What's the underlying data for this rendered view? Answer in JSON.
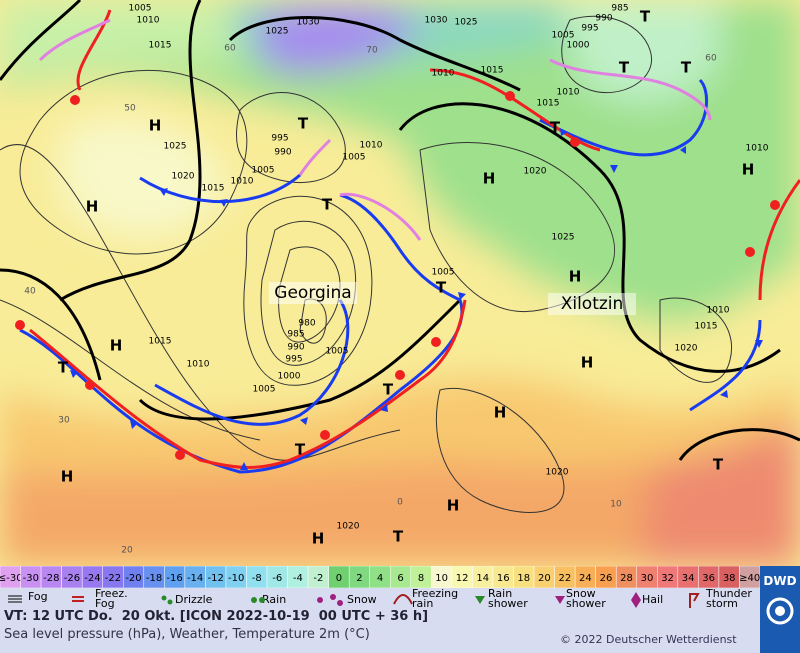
{
  "map": {
    "isobar_labels": [
      "1005",
      "1010",
      "1015",
      "1030",
      "1025",
      "1030",
      "1025",
      "990",
      "985",
      "1000",
      "995",
      "1005",
      "1010",
      "1010",
      "1015",
      "1015",
      "1020",
      "1025",
      "1010",
      "995",
      "990",
      "1005",
      "1010",
      "1015",
      "1020",
      "1025",
      "1010",
      "1005",
      "1005",
      "1005",
      "980",
      "985",
      "990",
      "995",
      "1000",
      "1005",
      "1010",
      "1015",
      "1015",
      "1020",
      "1010",
      "1020",
      "1020"
    ],
    "grid_labels": [
      "60",
      "50",
      "40",
      "30",
      "20",
      "0",
      "10",
      "70",
      "60"
    ],
    "centers": [
      "H",
      "H",
      "H",
      "H",
      "H",
      "H",
      "H",
      "H",
      "H",
      "H",
      "H",
      "T",
      "T",
      "T",
      "T",
      "T",
      "T",
      "T",
      "T",
      "T",
      "T",
      "T",
      "T"
    ],
    "names": [
      "Georgina",
      "Xilotzin"
    ]
  },
  "scale": {
    "labels": [
      "≤-30",
      "-30",
      "-28",
      "-26",
      "-24",
      "-22",
      "-20",
      "-18",
      "-16",
      "-14",
      "-12",
      "-10",
      "-8",
      "-6",
      "-4",
      "-2",
      "0",
      "2",
      "4",
      "6",
      "8",
      "10",
      "12",
      "14",
      "16",
      "18",
      "20",
      "22",
      "24",
      "26",
      "28",
      "30",
      "32",
      "34",
      "36",
      "38",
      "≥40"
    ],
    "colors": [
      "#e0a0f0",
      "#c890f0",
      "#b888f0",
      "#a880f0",
      "#9878f0",
      "#8878f0",
      "#7080f0",
      "#6890f0",
      "#60a0f0",
      "#68b0f0",
      "#70c0f0",
      "#80d0f0",
      "#90e0f0",
      "#a0e8e8",
      "#b0f0e0",
      "#c0f0d0",
      "#70d070",
      "#80d880",
      "#90e088",
      "#a8e890",
      "#c0f098",
      "#f8f8d0",
      "#f8f8b0",
      "#f8f0a0",
      "#f8e890",
      "#f8e080",
      "#f8d070",
      "#f8c060",
      "#f8b058",
      "#f8a050",
      "#f09060",
      "#f08070",
      "#f07878",
      "#e87070",
      "#e06868",
      "#d86060",
      "#d0a0a0"
    ]
  },
  "legend": [
    "Fog",
    "Freez. Fog",
    "Drizzle",
    "Rain",
    "Snow",
    "Freezing rain",
    "Rain shower",
    "Snow shower",
    "Hail",
    "Thunder storm"
  ],
  "footer": {
    "valid_time": "VT: 12 UTC Do.  20 Okt. [ICON 2022-10-19  00 UTC + 36 h]",
    "description": "Sea level pressure (hPa), Weather, Temperature 2m (°C)",
    "copyright": "© 2022 Deutscher Wetterdienst",
    "logo": "DWD"
  }
}
